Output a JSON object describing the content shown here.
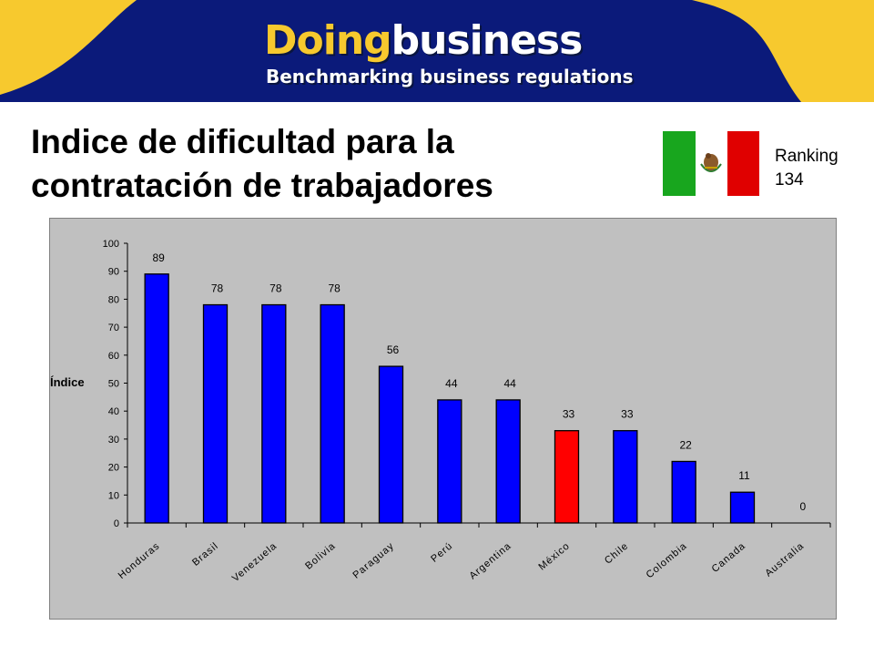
{
  "header": {
    "brand_doing": "Doing",
    "brand_business": "business",
    "tagline": "Benchmarking business regulations",
    "colors": {
      "banner": "#0b1a7a",
      "accent": "#f7c92e"
    }
  },
  "page": {
    "title_line1": "Indice de dificultad para la",
    "title_line2": "contratación de trabajadores"
  },
  "flag": {
    "country": "México",
    "icon": "mexico-flag-icon",
    "colors": [
      "#18a61e",
      "#ffffff",
      "#e00000"
    ]
  },
  "ranking": {
    "label": "Ranking",
    "value": "134"
  },
  "chart_data": {
    "type": "bar",
    "title": "",
    "xlabel": "",
    "ylabel": "Índice",
    "ylim": [
      0,
      100
    ],
    "yticks": [
      0,
      10,
      20,
      30,
      40,
      50,
      60,
      70,
      80,
      90,
      100
    ],
    "categories": [
      "Honduras",
      "Brasil",
      "Venezuela",
      "Bolivia",
      "Paraguay",
      "Perú",
      "Argentina",
      "México",
      "Chile",
      "Colombia",
      "Canada",
      "Australia"
    ],
    "values": [
      89,
      78,
      78,
      78,
      56,
      44,
      44,
      33,
      33,
      22,
      11,
      0
    ],
    "highlight_category": "México",
    "bar_color": "#0000ff",
    "highlight_color": "#ff0000",
    "plot_background": "#c0c0c0",
    "grid": false,
    "legend": "none",
    "data_labels": true
  }
}
